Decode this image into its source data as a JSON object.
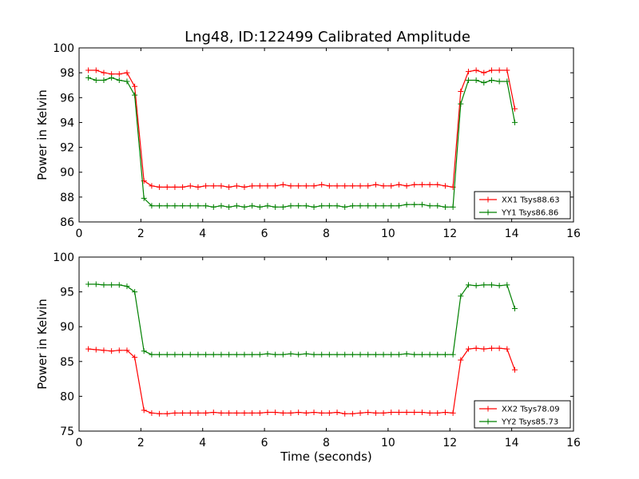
{
  "figure": {
    "title": "Lng48, ID:122499 Calibrated Amplitude"
  },
  "chart_data": [
    {
      "type": "line",
      "title": "Lng48, ID:122499 Calibrated Amplitude",
      "xlabel": "",
      "ylabel": "Power in Kelvin",
      "xlim": [
        0,
        16
      ],
      "ylim": [
        86,
        100
      ],
      "xticks": [
        0,
        2,
        4,
        6,
        8,
        10,
        12,
        14,
        16
      ],
      "yticks": [
        86,
        88,
        90,
        92,
        94,
        96,
        98,
        100
      ],
      "grid": false,
      "legend": "lower-right",
      "x": [
        0.3,
        0.55,
        0.8,
        1.05,
        1.3,
        1.55,
        1.8,
        2.1,
        2.35,
        2.6,
        2.85,
        3.1,
        3.35,
        3.6,
        3.85,
        4.1,
        4.35,
        4.6,
        4.85,
        5.1,
        5.35,
        5.6,
        5.85,
        6.1,
        6.35,
        6.6,
        6.85,
        7.1,
        7.35,
        7.6,
        7.85,
        8.1,
        8.35,
        8.6,
        8.85,
        9.1,
        9.35,
        9.6,
        9.85,
        10.1,
        10.35,
        10.6,
        10.85,
        11.1,
        11.35,
        11.6,
        11.85,
        12.1,
        12.35,
        12.6,
        12.85,
        13.1,
        13.35,
        13.6,
        13.85,
        14.1
      ],
      "series": [
        {
          "name": "XX1 Tsys88.63",
          "color": "#ff0000",
          "values": [
            98.2,
            98.2,
            98.0,
            97.9,
            97.9,
            98.0,
            96.9,
            89.3,
            88.9,
            88.8,
            88.8,
            88.8,
            88.8,
            88.9,
            88.8,
            88.9,
            88.9,
            88.9,
            88.8,
            88.9,
            88.8,
            88.9,
            88.9,
            88.9,
            88.9,
            89.0,
            88.9,
            88.9,
            88.9,
            88.9,
            89.0,
            88.9,
            88.9,
            88.9,
            88.9,
            88.9,
            88.9,
            89.0,
            88.9,
            88.9,
            89.0,
            88.9,
            89.0,
            89.0,
            89.0,
            89.0,
            88.9,
            88.8,
            96.5,
            98.1,
            98.2,
            98.0,
            98.2,
            98.2,
            98.2,
            95.1
          ]
        },
        {
          "name": "YY1 Tsys86.86",
          "color": "#008000",
          "values": [
            97.6,
            97.4,
            97.4,
            97.6,
            97.4,
            97.3,
            96.2,
            87.9,
            87.3,
            87.3,
            87.3,
            87.3,
            87.3,
            87.3,
            87.3,
            87.3,
            87.2,
            87.3,
            87.2,
            87.3,
            87.2,
            87.3,
            87.2,
            87.3,
            87.2,
            87.2,
            87.3,
            87.3,
            87.3,
            87.2,
            87.3,
            87.3,
            87.3,
            87.2,
            87.3,
            87.3,
            87.3,
            87.3,
            87.3,
            87.3,
            87.3,
            87.4,
            87.4,
            87.4,
            87.3,
            87.3,
            87.2,
            87.2,
            95.5,
            97.4,
            97.4,
            97.2,
            97.4,
            97.3,
            97.3,
            94.0
          ]
        }
      ]
    },
    {
      "type": "line",
      "title": "",
      "xlabel": "Time (seconds)",
      "ylabel": "Power in Kelvin",
      "xlim": [
        0,
        16
      ],
      "ylim": [
        75,
        100
      ],
      "xticks": [
        0,
        2,
        4,
        6,
        8,
        10,
        12,
        14,
        16
      ],
      "yticks": [
        75,
        80,
        85,
        90,
        95,
        100
      ],
      "grid": false,
      "legend": "lower-right",
      "x": [
        0.3,
        0.55,
        0.8,
        1.05,
        1.3,
        1.55,
        1.8,
        2.1,
        2.35,
        2.6,
        2.85,
        3.1,
        3.35,
        3.6,
        3.85,
        4.1,
        4.35,
        4.6,
        4.85,
        5.1,
        5.35,
        5.6,
        5.85,
        6.1,
        6.35,
        6.6,
        6.85,
        7.1,
        7.35,
        7.6,
        7.85,
        8.1,
        8.35,
        8.6,
        8.85,
        9.1,
        9.35,
        9.6,
        9.85,
        10.1,
        10.35,
        10.6,
        10.85,
        11.1,
        11.35,
        11.6,
        11.85,
        12.1,
        12.35,
        12.6,
        12.85,
        13.1,
        13.35,
        13.6,
        13.85,
        14.1
      ],
      "series": [
        {
          "name": "XX2 Tsys78.09",
          "color": "#ff0000",
          "values": [
            86.8,
            86.7,
            86.6,
            86.5,
            86.6,
            86.6,
            85.6,
            78.0,
            77.6,
            77.5,
            77.5,
            77.6,
            77.6,
            77.6,
            77.6,
            77.6,
            77.7,
            77.6,
            77.6,
            77.6,
            77.6,
            77.6,
            77.6,
            77.7,
            77.7,
            77.6,
            77.6,
            77.7,
            77.6,
            77.7,
            77.6,
            77.6,
            77.7,
            77.5,
            77.5,
            77.6,
            77.7,
            77.6,
            77.6,
            77.7,
            77.7,
            77.7,
            77.7,
            77.7,
            77.6,
            77.6,
            77.7,
            77.6,
            85.2,
            86.8,
            86.9,
            86.8,
            86.9,
            86.9,
            86.8,
            83.8
          ]
        },
        {
          "name": "YY2 Tsys85.73",
          "color": "#008000",
          "values": [
            96.1,
            96.1,
            96.0,
            96.0,
            96.0,
            95.8,
            95.0,
            86.5,
            86.0,
            86.0,
            86.0,
            86.0,
            86.0,
            86.0,
            86.0,
            86.0,
            86.0,
            86.0,
            86.0,
            86.0,
            86.0,
            86.0,
            86.0,
            86.1,
            86.0,
            86.0,
            86.1,
            86.0,
            86.1,
            86.0,
            86.0,
            86.0,
            86.0,
            86.0,
            86.0,
            86.0,
            86.0,
            86.0,
            86.0,
            86.0,
            86.0,
            86.1,
            86.0,
            86.0,
            86.0,
            86.0,
            86.0,
            86.0,
            94.4,
            96.0,
            95.9,
            96.0,
            96.0,
            95.9,
            96.0,
            92.6
          ]
        }
      ]
    }
  ]
}
